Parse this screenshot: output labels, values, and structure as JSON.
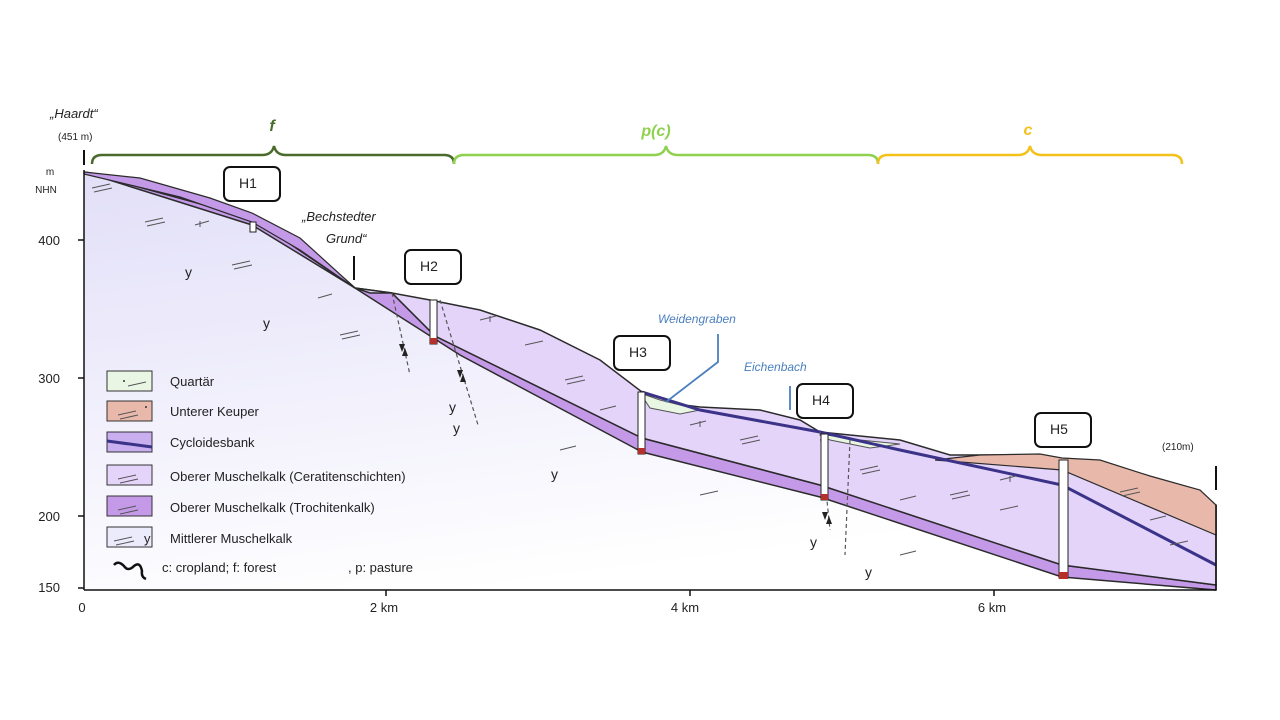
{
  "top_labels": {
    "haardt": "„Haardt“",
    "haardt_elev": "(451 m)",
    "m": "m",
    "nhn": "NHN",
    "bechstedter": "„Bechstedter",
    "grund": "Grund“",
    "weidengraben": "Weidengraben",
    "eichenbach": "Eichenbach",
    "end_elev": "(210m)"
  },
  "land_use": [
    {
      "code": "f",
      "color": "#4a6b2c"
    },
    {
      "code": "p(c)",
      "color": "#8fd14f"
    },
    {
      "code": "c",
      "color": "#f2c21b"
    }
  ],
  "wells": [
    "H1",
    "H2",
    "H3",
    "H4",
    "H5"
  ],
  "y_axis": {
    "ticks": [
      "400",
      "300",
      "200",
      "150"
    ]
  },
  "x_axis": {
    "ticks": [
      "0",
      "2 km",
      "4 km",
      "6 km"
    ]
  },
  "y_symbol": "y",
  "legend": [
    {
      "label": "Quartär",
      "color": "#eaf6e4"
    },
    {
      "label": "Unterer Keuper",
      "color": "#e8b9ab"
    },
    {
      "label": "Cycloidesbank",
      "color": "#c9aef0"
    },
    {
      "label": "Oberer Muschelkalk (Ceratitenschichten)",
      "color": "#e4d4fa"
    },
    {
      "label": "Oberer Muschelkalk (Trochitenkalk)",
      "color": "#c49ae8"
    },
    {
      "label": "Mittlerer Muschelkalk",
      "color": "#ecebfb"
    }
  ],
  "landuse_legend": {
    "left": "c: cropland; f: forest",
    "right": ", p: pasture"
  },
  "colors": {
    "mittlerer": "#ecebfb",
    "trochiten": "#c49ae8",
    "ceratiten": "#e4d4fa",
    "cycloides": "#3a3388",
    "keuper": "#e8b9ab",
    "quartaer": "#eaf6e4",
    "river": "#4a7fc0"
  }
}
